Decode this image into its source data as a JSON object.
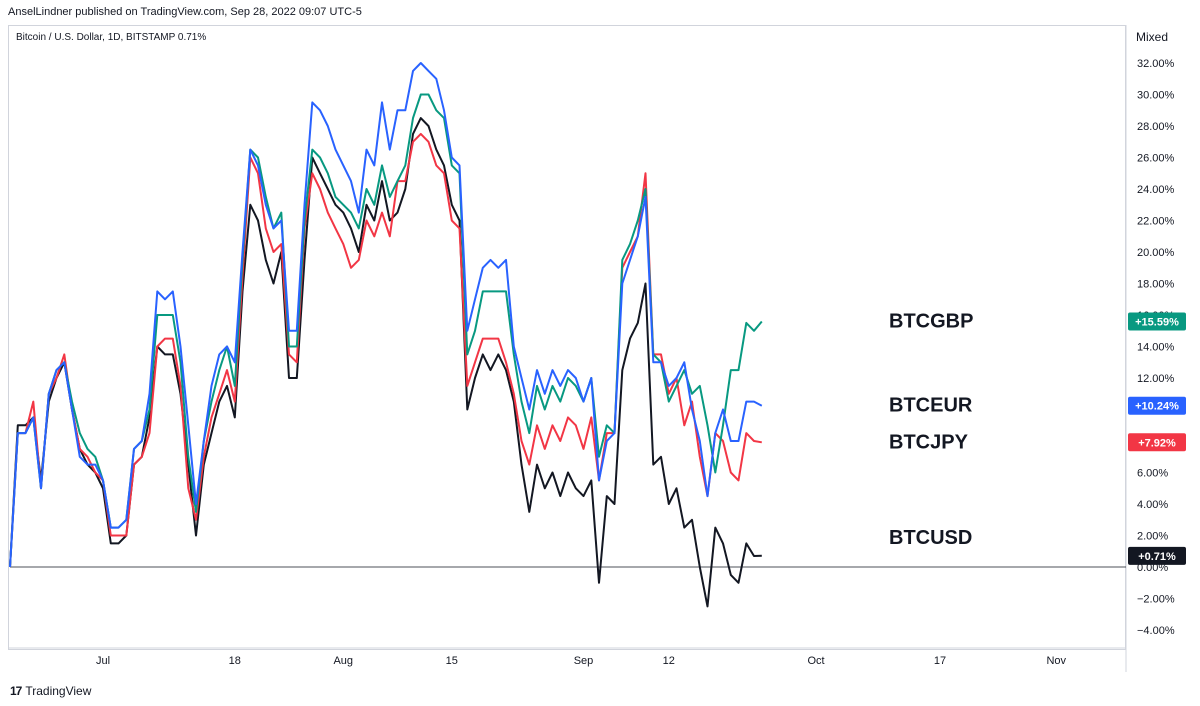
{
  "header": {
    "published": "AnselLindner published on TradingView.com, Sep 28, 2022 09:07 UTC-5",
    "symbol": "Bitcoin / U.S. Dollar, 1D, BITSTAMP  0.71%",
    "scale_mode": "Mixed"
  },
  "footer": {
    "logo": "17",
    "brand": "TradingView"
  },
  "chart_data": {
    "type": "line",
    "y_unit": "%",
    "ylim": [
      -5,
      33
    ],
    "y_ticks": [
      -4,
      -2,
      0,
      2,
      4,
      6,
      8,
      10,
      12,
      14,
      16,
      18,
      20,
      22,
      24,
      26,
      28,
      30,
      32
    ],
    "y_tick_labels": [
      "−4.00%",
      "−2.00%",
      "0.00%",
      "2.00%",
      "4.00%",
      "6.00%",
      "8.00%",
      "10.00%",
      "12.00%",
      "14.00%",
      "16.00%",
      "18.00%",
      "20.00%",
      "22.00%",
      "24.00%",
      "26.00%",
      "28.00%",
      "30.00%",
      "32.00%"
    ],
    "x_start": "2022-06-19",
    "x_tick_labels": [
      {
        "date": "2022-07-01",
        "label": "Jul"
      },
      {
        "date": "2022-07-18",
        "label": "18"
      },
      {
        "date": "2022-08-01",
        "label": "Aug"
      },
      {
        "date": "2022-08-15",
        "label": "15"
      },
      {
        "date": "2022-09-01",
        "label": "Sep"
      },
      {
        "date": "2022-09-12",
        "label": "12"
      },
      {
        "date": "2022-10-01",
        "label": "Oct"
      },
      {
        "date": "2022-10-17",
        "label": "17"
      },
      {
        "date": "2022-11-01",
        "label": "Nov"
      }
    ],
    "baseline": 0,
    "series": [
      {
        "name": "BTCUSD",
        "color": "#131722",
        "last_label": "+0.71%",
        "values": [
          0,
          9,
          9,
          9.5,
          5.5,
          10.5,
          12,
          13,
          10,
          7.5,
          6.5,
          6,
          5,
          1.5,
          1.5,
          2,
          6.5,
          7,
          9.5,
          14,
          13.5,
          13.5,
          11,
          6.5,
          2,
          6.5,
          8.5,
          10.5,
          11.5,
          9.5,
          17.5,
          23,
          22,
          19.5,
          18,
          20,
          12,
          12,
          19.5,
          26,
          25,
          24,
          23,
          22.5,
          21.5,
          20,
          23,
          22,
          24.5,
          22,
          22.5,
          24,
          27.5,
          28.5,
          28,
          26.5,
          25.5,
          23,
          22,
          10,
          12,
          13.5,
          12.5,
          13.5,
          12.5,
          10.5,
          6.5,
          3.5,
          6.5,
          5,
          6,
          4.5,
          6,
          5,
          4.5,
          5.5,
          -1,
          4.5,
          4,
          12.5,
          14.5,
          15.5,
          18,
          6.5,
          7,
          4,
          5,
          2.5,
          3,
          0,
          -2.5,
          2.5,
          1.5,
          -0.5,
          -1,
          1.5,
          0.7,
          0.71
        ]
      },
      {
        "name": "BTCJPY",
        "color": "#f23645",
        "last_label": "+7.92%",
        "values": [
          0,
          8.5,
          8.5,
          10.5,
          5,
          11,
          12,
          13.5,
          10,
          7.5,
          7,
          6,
          5.5,
          2,
          2,
          2,
          6.5,
          7,
          8.5,
          14,
          14.5,
          14.5,
          11.5,
          5,
          3,
          7,
          9.5,
          11,
          12.5,
          10.5,
          18.5,
          26,
          25,
          21.5,
          20,
          20.5,
          13.5,
          13,
          21.5,
          25,
          24,
          22.5,
          21.5,
          20.5,
          19,
          19.5,
          22,
          21,
          22.5,
          21,
          24.5,
          24.5,
          27,
          27.5,
          27,
          25.5,
          25,
          22,
          21.5,
          11.5,
          13,
          14.5,
          14.5,
          14.5,
          13,
          11,
          8,
          6.5,
          9,
          7.5,
          9,
          8,
          9.5,
          9,
          7.5,
          9.5,
          5.5,
          8.5,
          8.5,
          19,
          20,
          21,
          25,
          13.5,
          13.5,
          11,
          12,
          9,
          10.5,
          7,
          4.5,
          8.5,
          8,
          6,
          5.5,
          8.5,
          8,
          7.92
        ]
      },
      {
        "name": "BTCGBP",
        "color": "#089981",
        "last_label": "+15.59%",
        "values": [
          0,
          8.5,
          8.5,
          9.5,
          5,
          11,
          12.5,
          13,
          10.5,
          8.5,
          7.5,
          7,
          5.5,
          2.5,
          2.5,
          3,
          7.5,
          8,
          10,
          16,
          16,
          16,
          13,
          7,
          3.5,
          8,
          10.5,
          12.5,
          14,
          11.5,
          19.5,
          26.5,
          26,
          23.5,
          21.5,
          22.5,
          14,
          14,
          22,
          26.5,
          26,
          25,
          23.5,
          23,
          22.5,
          21.5,
          24,
          23,
          25.5,
          23.5,
          24.5,
          25.5,
          28.5,
          30,
          30,
          29,
          28.5,
          25.5,
          25,
          13.5,
          15,
          17.5,
          17.5,
          17.5,
          17.5,
          13.5,
          10.5,
          8.5,
          11.5,
          10,
          11.5,
          10.5,
          12,
          11.5,
          10.5,
          12,
          7,
          9,
          8.5,
          19.5,
          20.5,
          22,
          24,
          13.5,
          13,
          10.5,
          11.5,
          12.5,
          11,
          11.5,
          9,
          6,
          9,
          12.5,
          12.5,
          15.5,
          15,
          15.59
        ]
      },
      {
        "name": "BTCEUR",
        "color": "#2962ff",
        "last_label": "+10.24%",
        "values": [
          0,
          8.5,
          8.5,
          9.5,
          5,
          11,
          12.5,
          13,
          10,
          7,
          6.5,
          6.5,
          5.5,
          2.5,
          2.5,
          3,
          7.5,
          8,
          11,
          17.5,
          17,
          17.5,
          14,
          9,
          4,
          8,
          11.5,
          13.5,
          14,
          13,
          20,
          26.5,
          25.5,
          23,
          21.5,
          22,
          15,
          15,
          23,
          29.5,
          29,
          28,
          26.5,
          25.5,
          24.5,
          22.5,
          26.5,
          25.5,
          29.5,
          26.5,
          29,
          29,
          31.5,
          32,
          31.5,
          31,
          29,
          26,
          25.5,
          15,
          17,
          19,
          19.5,
          19,
          19.5,
          14,
          12,
          10,
          12.5,
          11,
          12.5,
          11.5,
          12.5,
          12,
          10.5,
          12,
          5.5,
          8,
          8.5,
          18,
          19.5,
          21,
          23.5,
          13,
          13,
          11.5,
          12,
          13,
          10,
          8,
          4.5,
          8.5,
          10,
          8,
          8,
          10.5,
          10.5,
          10.24
        ]
      }
    ],
    "annotations": [
      {
        "text": "BTCGBP",
        "value": 15.59
      },
      {
        "text": "BTCEUR",
        "value": 10.24
      },
      {
        "text": "BTCJPY",
        "value": 7.92
      },
      {
        "text": "BTCUSD",
        "value": 0.71
      }
    ]
  }
}
